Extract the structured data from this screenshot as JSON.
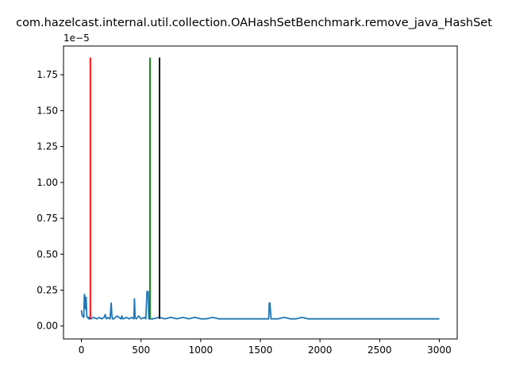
{
  "chart_data": {
    "type": "line",
    "title": "com.hazelcast.internal.util.collection.OAHashSetBenchmark.remove_java_HashSet",
    "xlabel": "",
    "ylabel": "",
    "y_offset_text": "1e−5",
    "xlim": [
      -150,
      3150
    ],
    "ylim": [
      -0.09,
      1.95
    ],
    "x_ticks": [
      0,
      500,
      1000,
      1500,
      2000,
      2500,
      3000
    ],
    "x_tick_labels": [
      "0",
      "500",
      "1000",
      "1500",
      "2000",
      "2500",
      "3000"
    ],
    "y_ticks": [
      0.0,
      0.25,
      0.5,
      0.75,
      1.0,
      1.25,
      1.5,
      1.75
    ],
    "y_tick_labels": [
      "0.00",
      "0.25",
      "0.50",
      "0.75",
      "1.00",
      "1.25",
      "1.50",
      "1.75"
    ],
    "grid": false,
    "series": [
      {
        "color": "#1f77b4",
        "x": [
          0,
          5,
          10,
          20,
          25,
          30,
          35,
          40,
          45,
          50,
          55,
          60,
          65,
          70,
          80,
          100,
          130,
          150,
          170,
          190,
          200,
          205,
          210,
          220,
          240,
          250,
          255,
          260,
          270,
          300,
          330,
          340,
          345,
          350,
          380,
          400,
          420,
          440,
          445,
          450,
          460,
          480,
          500,
          530,
          540,
          550,
          555,
          560,
          565,
          570,
          600,
          650,
          700,
          750,
          800,
          850,
          900,
          950,
          1000,
          1050,
          1100,
          1150,
          1200,
          1300,
          1400,
          1500,
          1550,
          1570,
          1575,
          1580,
          1590,
          1650,
          1700,
          1750,
          1800,
          1850,
          1900,
          1950,
          2000,
          2100,
          2200,
          2250,
          2300,
          2350,
          2400,
          2450,
          2500,
          2550,
          2600,
          2650,
          2700,
          2800,
          2900,
          3000
        ],
        "y": [
          0.11,
          0.08,
          0.07,
          0.06,
          0.22,
          0.2,
          0.12,
          0.2,
          0.07,
          0.06,
          0.06,
          0.05,
          0.06,
          0.05,
          0.05,
          0.06,
          0.05,
          0.06,
          0.05,
          0.06,
          0.08,
          0.06,
          0.05,
          0.06,
          0.05,
          0.16,
          0.08,
          0.05,
          0.05,
          0.07,
          0.05,
          0.07,
          0.05,
          0.05,
          0.06,
          0.05,
          0.06,
          0.05,
          0.19,
          0.06,
          0.05,
          0.07,
          0.05,
          0.06,
          0.05,
          0.24,
          0.24,
          0.24,
          0.05,
          0.05,
          0.05,
          0.06,
          0.05,
          0.06,
          0.05,
          0.06,
          0.05,
          0.06,
          0.05,
          0.05,
          0.06,
          0.05,
          0.05,
          0.05,
          0.05,
          0.05,
          0.05,
          0.05,
          0.16,
          0.16,
          0.05,
          0.05,
          0.06,
          0.05,
          0.05,
          0.06,
          0.05,
          0.05,
          0.05,
          0.05,
          0.05,
          0.05,
          0.05,
          0.05,
          0.05,
          0.05,
          0.05,
          0.05,
          0.05,
          0.05,
          0.05,
          0.05,
          0.05,
          0.05
        ]
      }
    ],
    "vertical_lines": [
      {
        "x": 75,
        "color": "#ff0000",
        "y_top": 1.87,
        "y_bottom": 0.05
      },
      {
        "x": 575,
        "color": "#008000",
        "y_top": 1.87,
        "y_bottom": 0.05
      },
      {
        "x": 655,
        "color": "#000000",
        "y_top": 1.87,
        "y_bottom": 0.05
      }
    ]
  }
}
